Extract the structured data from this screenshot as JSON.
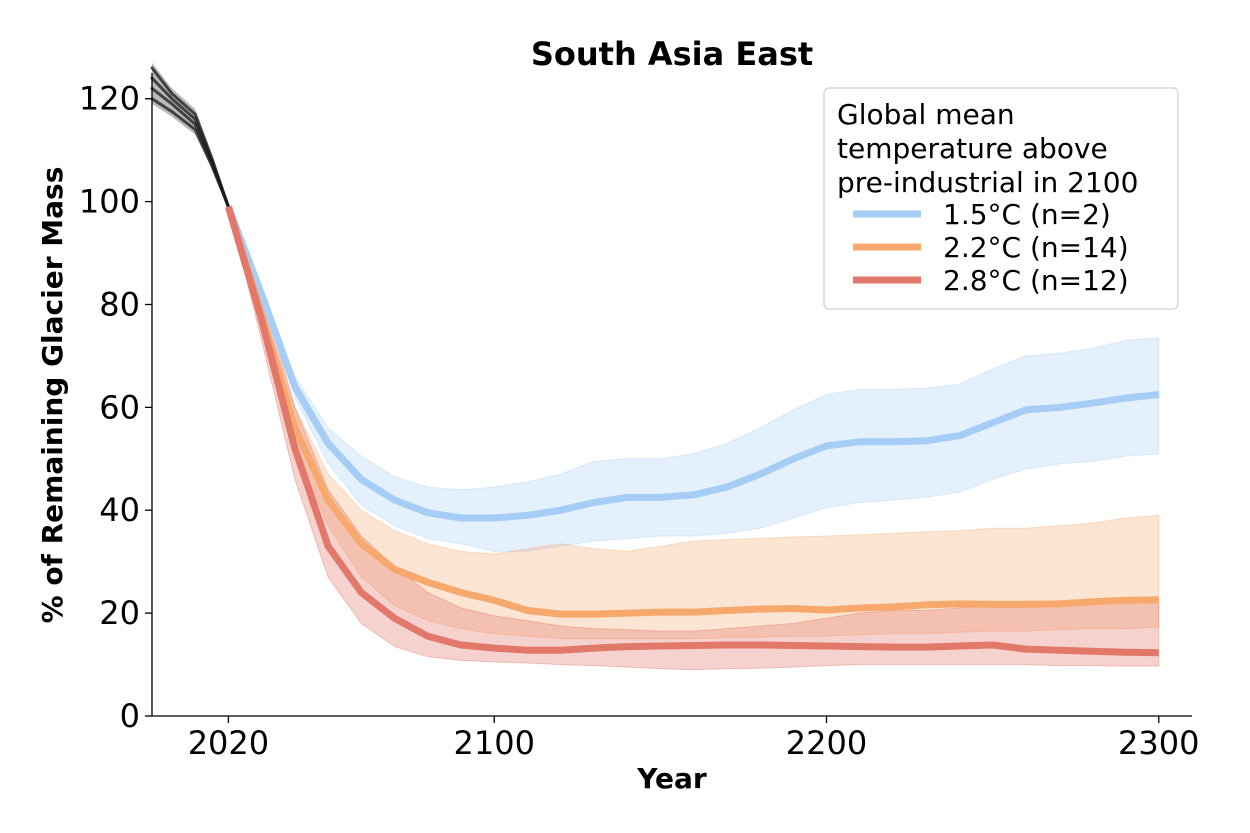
{
  "chart_data": {
    "type": "line",
    "title": "South Asia East",
    "xlabel": "Year",
    "ylabel": "% of Remaining Glacier Mass",
    "xlim": [
      1997,
      2310
    ],
    "ylim": [
      0,
      125
    ],
    "xticks": [
      2020,
      2100,
      2200,
      2300
    ],
    "yticks": [
      0,
      20,
      40,
      60,
      80,
      100,
      120
    ],
    "grid": false,
    "legend": {
      "title": "Global mean\ntemperature above\npre-industrial in 2100",
      "placement": "top-right"
    },
    "historical": {
      "color": "#1a1a1a",
      "runs": [
        {
          "x": [
            1997,
            2003,
            2010,
            2015,
            2020
          ],
          "y": [
            124,
            120,
            116,
            108,
            99
          ]
        },
        {
          "x": [
            1997,
            2003,
            2010,
            2015,
            2020
          ],
          "y": [
            122,
            119,
            115,
            107.5,
            99
          ]
        },
        {
          "x": [
            1997,
            2003,
            2010,
            2015,
            2020
          ],
          "y": [
            120,
            117.5,
            114,
            107,
            99
          ]
        },
        {
          "x": [
            1997,
            2003,
            2010,
            2015,
            2020
          ],
          "y": [
            126,
            121,
            117,
            108.5,
            99
          ]
        }
      ],
      "band": {
        "x": [
          1997,
          2003,
          2010,
          2015,
          2020
        ],
        "lower": [
          119,
          116.5,
          113,
          106.5,
          99
        ],
        "upper": [
          127,
          122,
          118,
          109,
          99
        ]
      }
    },
    "series": [
      {
        "name": "1.5°C (n=2)",
        "color": "#a5cdf5",
        "band_color": "#a5cdf5",
        "x": [
          2020,
          2030,
          2040,
          2050,
          2060,
          2070,
          2080,
          2090,
          2100,
          2110,
          2120,
          2130,
          2140,
          2150,
          2160,
          2170,
          2180,
          2190,
          2200,
          2210,
          2220,
          2230,
          2240,
          2250,
          2260,
          2270,
          2280,
          2290,
          2300
        ],
        "y": [
          99,
          82,
          64,
          53,
          46,
          42,
          39.5,
          38.5,
          38.5,
          39,
          40,
          41.5,
          42.5,
          42.5,
          43,
          44.5,
          47,
          50,
          52.5,
          53.3,
          53.3,
          53.5,
          54.5,
          57,
          59.5,
          60,
          60.8,
          61.8,
          62.5
        ],
        "lower": [
          99,
          81,
          62,
          49,
          41,
          37,
          34.5,
          33.5,
          32,
          32,
          33,
          34,
          34.5,
          35,
          35,
          35.5,
          36.5,
          38.5,
          40.5,
          41.5,
          42,
          42.5,
          43.5,
          46,
          48,
          49,
          49.5,
          50.5,
          51
        ],
        "upper": [
          99,
          83,
          66,
          56,
          50.5,
          46.5,
          44.5,
          44,
          44.5,
          45.5,
          47,
          49.5,
          50,
          50,
          51,
          53,
          56,
          59.5,
          62.5,
          63.5,
          63.5,
          63.7,
          64.5,
          67.5,
          70,
          70.5,
          71.5,
          73,
          73.5
        ]
      },
      {
        "name": "2.2°C (n=14)",
        "color": "#f7a96d",
        "band_color": "#f7a96d",
        "x": [
          2020,
          2030,
          2040,
          2050,
          2060,
          2070,
          2080,
          2090,
          2100,
          2110,
          2120,
          2130,
          2140,
          2150,
          2160,
          2170,
          2180,
          2190,
          2200,
          2210,
          2220,
          2230,
          2240,
          2250,
          2260,
          2270,
          2280,
          2290,
          2300
        ],
        "y": [
          99,
          78,
          56,
          42,
          33.5,
          28.5,
          26,
          24,
          22.5,
          20.5,
          19.8,
          19.8,
          20,
          20.2,
          20.2,
          20.5,
          20.8,
          20.9,
          20.6,
          21,
          21.2,
          21.6,
          21.8,
          21.7,
          21.7,
          21.8,
          22.2,
          22.5,
          22.6
        ],
        "lower": [
          99,
          76,
          52,
          37,
          27,
          21.5,
          18.5,
          17,
          16,
          15.5,
          15,
          15,
          15,
          15,
          15,
          15.2,
          15.3,
          15.5,
          15.5,
          15.8,
          16,
          16,
          16.3,
          16.5,
          16.5,
          16.8,
          17,
          17,
          17.2
        ],
        "upper": [
          99,
          80,
          60,
          47,
          40,
          36,
          33.5,
          32,
          31.5,
          32.5,
          33.5,
          32.5,
          32,
          33,
          34,
          34.3,
          34.5,
          34.8,
          35,
          35.2,
          35.5,
          35.8,
          36,
          36.5,
          36.5,
          37,
          37.5,
          38.5,
          39
        ]
      },
      {
        "name": "2.8°C (n=12)",
        "color": "#e2786a",
        "band_color": "#e06a60",
        "x": [
          2020,
          2030,
          2040,
          2050,
          2060,
          2070,
          2080,
          2090,
          2100,
          2110,
          2120,
          2130,
          2140,
          2150,
          2160,
          2170,
          2180,
          2190,
          2200,
          2210,
          2220,
          2230,
          2240,
          2250,
          2260,
          2270,
          2280,
          2290,
          2300
        ],
        "y": [
          99,
          77,
          52,
          33,
          24,
          19,
          15.5,
          13.8,
          13.2,
          12.8,
          12.8,
          13.2,
          13.5,
          13.6,
          13.7,
          13.8,
          13.8,
          13.7,
          13.6,
          13.5,
          13.4,
          13.4,
          13.6,
          13.8,
          13,
          12.8,
          12.6,
          12.4,
          12.3
        ],
        "lower": [
          99,
          73,
          46,
          27,
          18,
          13.5,
          11.5,
          10.8,
          10.5,
          10.3,
          10,
          9.8,
          9.5,
          9.2,
          9,
          9.2,
          9.3,
          9.5,
          9.8,
          10,
          10,
          10,
          10,
          10,
          10,
          9.8,
          9.8,
          9.7,
          9.7
        ],
        "upper": [
          99,
          83,
          60,
          44,
          35,
          29,
          24,
          21,
          19.5,
          18.5,
          17.5,
          17,
          16.8,
          16.5,
          16.5,
          17,
          17.5,
          18,
          19,
          20,
          20.5,
          20.5,
          21,
          21.5,
          21.5,
          22,
          22,
          22,
          22
        ]
      }
    ]
  }
}
